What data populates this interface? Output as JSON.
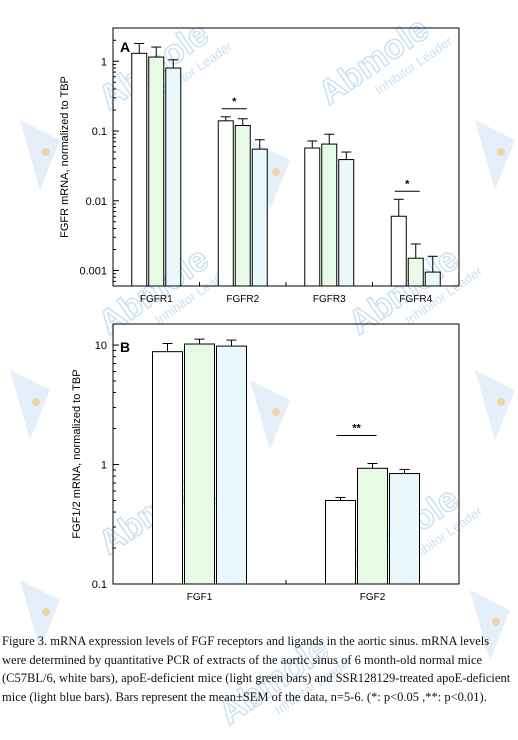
{
  "watermark": {
    "brand": "Abmole",
    "tagline": "Inhibitor Leader",
    "color": "#9fc7ea",
    "accent": "#f5c36b"
  },
  "colors": {
    "normal": "#ffffff",
    "apoE": "#e6fae6",
    "ssr": "#e9f8fb",
    "stroke": "#000000"
  },
  "chart_data": [
    {
      "type": "bar",
      "panel": "A",
      "ylabel": "FGFR mRNA, normalized to TBP",
      "yscale": "log",
      "ylim": [
        0.0006,
        3
      ],
      "yticks": [
        "1",
        "0.1",
        "0.01",
        "0.001"
      ],
      "categories": [
        "FGFR1",
        "FGFR2",
        "FGFR3",
        "FGFR4"
      ],
      "series": [
        {
          "values": [
            1.3,
            0.14,
            0.057,
            0.006
          ],
          "errors": [
            1.8,
            0.16,
            0.072,
            0.0105
          ]
        },
        {
          "values": [
            1.15,
            0.12,
            0.065,
            0.0015
          ],
          "errors": [
            1.6,
            0.15,
            0.09,
            0.0024
          ]
        },
        {
          "values": [
            0.8,
            0.055,
            0.039,
            0.00095
          ],
          "errors": [
            1.05,
            0.075,
            0.05,
            0.0016
          ]
        }
      ],
      "significance": [
        {
          "category": "FGFR2",
          "label": "*"
        },
        {
          "category": "FGFR4",
          "label": "*"
        }
      ]
    },
    {
      "type": "bar",
      "panel": "B",
      "ylabel": "FGF1/2 mRNA, normalized to TBP",
      "yscale": "log",
      "ylim": [
        0.1,
        15
      ],
      "yticks": [
        "10",
        "1",
        "0.1"
      ],
      "categories": [
        "FGF1",
        "FGF2"
      ],
      "series": [
        {
          "values": [
            8.8,
            0.5
          ],
          "errors": [
            10.3,
            0.53
          ]
        },
        {
          "values": [
            10.2,
            0.93
          ],
          "errors": [
            11.2,
            1.02
          ]
        },
        {
          "values": [
            9.8,
            0.84
          ],
          "errors": [
            11.0,
            0.91
          ]
        }
      ],
      "significance": [
        {
          "category": "FGF2",
          "label": "**"
        }
      ]
    }
  ],
  "caption": "Figure 3. mRNA expression levels of FGF receptors and ligands in the aortic sinus. mRNA levels were determined by quantitative PCR of extracts of the aortic sinus of 6 month-old normal mice (C57BL/6, white bars), apoE-deficient mice (light green bars) and SSR128129-treated apoE-deficient mice (light blue bars). Bars represent the mean±SEM of the data, n=5-6. (*: p<0.05 ,**: p<0.01)."
}
